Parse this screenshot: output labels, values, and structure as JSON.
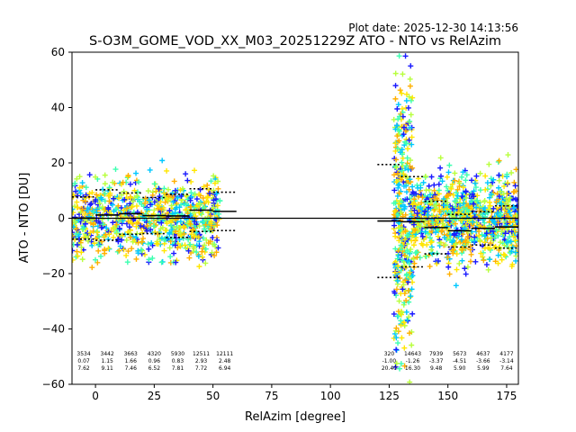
{
  "plot_date_label": "Plot date: 2025-12-30 14:13:56",
  "chart_data": {
    "type": "scatter",
    "title": "S-O3M_GOME_VOD_XX_M03_20251229Z ATO - NTO vs RelAzim",
    "xlabel": "RelAzim [degree]",
    "ylabel": "ATO - NTO [DU]",
    "xlim": [
      -10,
      180
    ],
    "ylim": [
      -60,
      60
    ],
    "x_ticks": [
      0,
      25,
      50,
      75,
      100,
      125,
      150,
      175
    ],
    "y_ticks": [
      -60,
      -40,
      -20,
      0,
      20,
      40,
      60
    ],
    "grid": false,
    "legend": "none",
    "zero_line": 0,
    "colormap": [
      "#1a1aff",
      "#00c8ff",
      "#3dffb0",
      "#b8ff3d",
      "#ffe600",
      "#ffb000"
    ],
    "bins": [
      {
        "x_start": -10,
        "x_end": 0,
        "count": "3534",
        "mean": "0.07",
        "std": "7.62",
        "mean_value": 0.07,
        "std_value": 7.62
      },
      {
        "x_start": 0,
        "x_end": 10,
        "count": "3442",
        "mean": "1.15",
        "std": "9.11",
        "mean_value": 1.15,
        "std_value": 9.11
      },
      {
        "x_start": 10,
        "x_end": 20,
        "count": "3663",
        "mean": "1.66",
        "std": "7.46",
        "mean_value": 1.66,
        "std_value": 7.46
      },
      {
        "x_start": 20,
        "x_end": 30,
        "count": "4320",
        "mean": "0.96",
        "std": "6.52",
        "mean_value": 0.96,
        "std_value": 6.52
      },
      {
        "x_start": 30,
        "x_end": 40,
        "count": "5930",
        "mean": "0.83",
        "std": "7.81",
        "mean_value": 0.83,
        "std_value": 7.81
      },
      {
        "x_start": 40,
        "x_end": 50,
        "count": "12511",
        "mean": "2.93",
        "std": "7.72",
        "mean_value": 2.93,
        "std_value": 7.72
      },
      {
        "x_start": 50,
        "x_end": 60,
        "count": "12111",
        "mean": "2.48",
        "std": "6.94",
        "mean_value": 2.48,
        "std_value": 6.94
      },
      {
        "x_start": 120,
        "x_end": 130,
        "count": "320",
        "mean": "-1.00",
        "std": "20.40",
        "mean_value": -1.0,
        "std_value": 20.4
      },
      {
        "x_start": 130,
        "x_end": 140,
        "count": "14643",
        "mean": "-1.26",
        "std": "16.30",
        "mean_value": -1.26,
        "std_value": 16.3
      },
      {
        "x_start": 140,
        "x_end": 150,
        "count": "7939",
        "mean": "-3.37",
        "std": "9.48",
        "mean_value": -3.37,
        "std_value": 9.48
      },
      {
        "x_start": 150,
        "x_end": 160,
        "count": "5673",
        "mean": "-4.51",
        "std": "5.90",
        "mean_value": -4.51,
        "std_value": 5.9
      },
      {
        "x_start": 160,
        "x_end": 170,
        "count": "4637",
        "mean": "-3.66",
        "std": "5.99",
        "mean_value": -3.66,
        "std_value": 5.99
      },
      {
        "x_start": 170,
        "x_end": 180,
        "count": "4177",
        "mean": "-3.14",
        "std": "7.64",
        "mean_value": -3.14,
        "std_value": 7.64
      }
    ],
    "scatter_clusters": [
      {
        "x_range": [
          -10,
          53
        ],
        "y_center": 0,
        "spread": 12
      },
      {
        "x_range": [
          127,
          135
        ],
        "y_center": 0,
        "spread": 45
      },
      {
        "x_range": [
          135,
          180
        ],
        "y_center": 0,
        "spread": 13
      }
    ]
  }
}
